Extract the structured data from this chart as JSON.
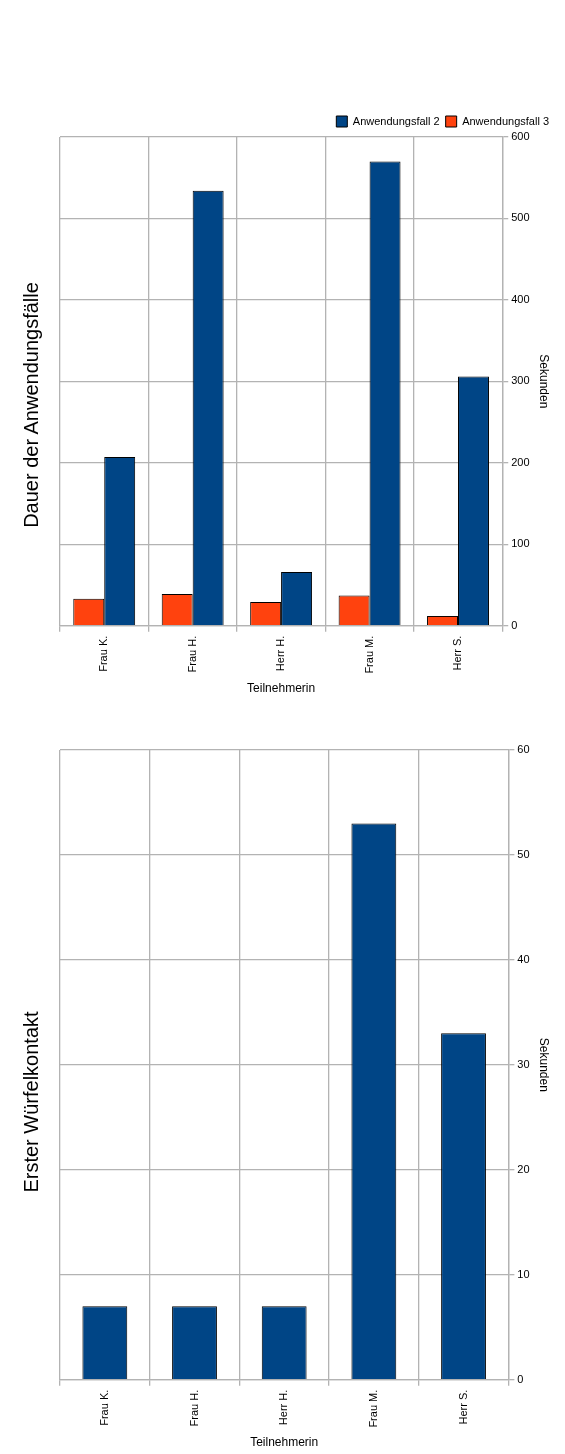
{
  "chart_data": [
    {
      "type": "bar",
      "title": "Dauer der Anwendungsfälle",
      "ylabel": "Sekunden",
      "xlabel": "Teilnehmerin",
      "categories": [
        "Frau K.",
        "Frau H.",
        "Herr H.",
        "Frau M.",
        "Herr S."
      ],
      "series": [
        {
          "name": "Anwendungsfall 2",
          "color": "#004586",
          "values": [
            207,
            534,
            66,
            570,
            306
          ]
        },
        {
          "name": "Anwendungsfall 3",
          "color": "#ff420e",
          "values": [
            33,
            39,
            29,
            37,
            12
          ]
        }
      ],
      "ylim": [
        0,
        600
      ],
      "yticks": [
        0,
        100,
        200,
        300,
        400,
        500,
        600
      ],
      "grid": true,
      "legend": "top right"
    },
    {
      "type": "bar",
      "title": "Erster Würfelkontakt",
      "ylabel": "Sekunden",
      "xlabel": "Teilnehmerin",
      "categories": [
        "Frau K.",
        "Frau H.",
        "Herr H.",
        "Frau M.",
        "Herr S."
      ],
      "values": [
        7,
        7,
        7,
        53,
        33
      ],
      "color": "#004586",
      "ylim": [
        0,
        60
      ],
      "yticks": [
        0,
        10,
        20,
        30,
        40,
        50,
        60
      ],
      "grid": true
    }
  ]
}
